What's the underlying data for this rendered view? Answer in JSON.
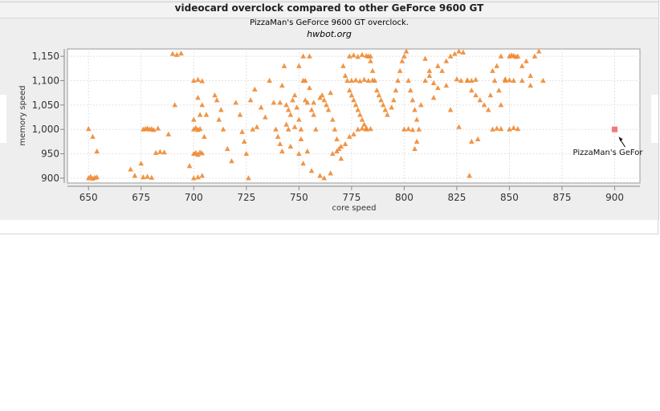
{
  "chart_data": {
    "type": "scatter",
    "title": "videocard overclock compared to other GeForce 9600 GT",
    "subtitle": "PizzaMan's GeForce 9600 GT overclock.",
    "source": "hwbot.org",
    "xlabel": "core speed",
    "ylabel": "memory speed",
    "xlim": [
      640,
      912
    ],
    "ylim": [
      890,
      1165
    ],
    "xticks": [
      650,
      675,
      700,
      725,
      750,
      775,
      800,
      825,
      850,
      875,
      900
    ],
    "yticks": [
      900,
      950,
      1000,
      1050,
      1100,
      1150
    ],
    "ytick_labels": [
      "900",
      "950",
      "1,000",
      "1,050",
      "1,100",
      "1,150"
    ],
    "grid": true,
    "series": [
      {
        "marker": "triangle",
        "color": "#ee8a33",
        "points": [
          [
            650,
            900
          ],
          [
            651,
            903
          ],
          [
            652,
            899
          ],
          [
            653,
            901
          ],
          [
            654,
            902
          ],
          [
            650,
            1001
          ],
          [
            652,
            985
          ],
          [
            654,
            955
          ],
          [
            670,
            918
          ],
          [
            672,
            905
          ],
          [
            675,
            930
          ],
          [
            676,
            1000
          ],
          [
            677,
            1001
          ],
          [
            678,
            1002
          ],
          [
            679,
            1000
          ],
          [
            680,
            1001
          ],
          [
            681,
            999
          ],
          [
            676,
            902
          ],
          [
            678,
            903
          ],
          [
            680,
            901
          ],
          [
            682,
            952
          ],
          [
            684,
            954
          ],
          [
            686,
            953
          ],
          [
            683,
            1002
          ],
          [
            688,
            990
          ],
          [
            691,
            1050
          ],
          [
            690,
            1155
          ],
          [
            692,
            1153
          ],
          [
            694,
            1156
          ],
          [
            700,
            1000
          ],
          [
            701,
            1003
          ],
          [
            702,
            999
          ],
          [
            703,
            1001
          ],
          [
            700,
            950
          ],
          [
            701,
            952
          ],
          [
            702,
            948
          ],
          [
            703,
            953
          ],
          [
            704,
            951
          ],
          [
            700,
            900
          ],
          [
            702,
            902
          ],
          [
            704,
            905
          ],
          [
            700,
            1100
          ],
          [
            702,
            1102
          ],
          [
            704,
            1099
          ],
          [
            702,
            1065
          ],
          [
            704,
            1050
          ],
          [
            703,
            1030
          ],
          [
            706,
            1030
          ],
          [
            700,
            1020
          ],
          [
            705,
            985
          ],
          [
            698,
            925
          ],
          [
            711,
            1060
          ],
          [
            710,
            1070
          ],
          [
            713,
            1040
          ],
          [
            712,
            1020
          ],
          [
            714,
            1000
          ],
          [
            716,
            960
          ],
          [
            718,
            935
          ],
          [
            720,
            1055
          ],
          [
            722,
            1030
          ],
          [
            723,
            995
          ],
          [
            724,
            975
          ],
          [
            725,
            950
          ],
          [
            726,
            900
          ],
          [
            728,
            1000
          ],
          [
            730,
            1005
          ],
          [
            727,
            1060
          ],
          [
            729,
            1082
          ],
          [
            732,
            1045
          ],
          [
            734,
            1025
          ],
          [
            736,
            1100
          ],
          [
            738,
            1055
          ],
          [
            739,
            1000
          ],
          [
            740,
            985
          ],
          [
            741,
            970
          ],
          [
            742,
            955
          ],
          [
            743,
            1130
          ],
          [
            744,
            1050
          ],
          [
            745,
            1040
          ],
          [
            746,
            1030
          ],
          [
            747,
            1060
          ],
          [
            748,
            1070
          ],
          [
            749,
            1045
          ],
          [
            750,
            1020
          ],
          [
            751,
            1000
          ],
          [
            752,
            1150
          ],
          [
            753,
            1100
          ],
          [
            754,
            1055
          ],
          [
            755,
            1085
          ],
          [
            756,
            1040
          ],
          [
            757,
            1030
          ],
          [
            750,
            950
          ],
          [
            752,
            930
          ],
          [
            754,
            955
          ],
          [
            756,
            915
          ],
          [
            750,
            1130
          ],
          [
            752,
            1100
          ],
          [
            755,
            1150
          ],
          [
            753,
            1060
          ],
          [
            757,
            1055
          ],
          [
            751,
            980
          ],
          [
            745,
            1000
          ],
          [
            744,
            1010
          ],
          [
            742,
            1090
          ],
          [
            741,
            1055
          ],
          [
            746,
            965
          ],
          [
            748,
            1005
          ],
          [
            758,
            1000
          ],
          [
            760,
            1065
          ],
          [
            761,
            1070
          ],
          [
            762,
            1060
          ],
          [
            763,
            1050
          ],
          [
            764,
            1040
          ],
          [
            765,
            1075
          ],
          [
            766,
            1020
          ],
          [
            767,
            1000
          ],
          [
            768,
            980
          ],
          [
            769,
            960
          ],
          [
            770,
            940
          ],
          [
            771,
            1130
          ],
          [
            772,
            1110
          ],
          [
            773,
            1100
          ],
          [
            774,
            1080
          ],
          [
            775,
            1070
          ],
          [
            776,
            1060
          ],
          [
            777,
            1050
          ],
          [
            778,
            1040
          ],
          [
            779,
            1030
          ],
          [
            780,
            1020
          ],
          [
            781,
            1010
          ],
          [
            782,
            1000
          ],
          [
            783,
            1150
          ],
          [
            784,
            1140
          ],
          [
            785,
            1120
          ],
          [
            786,
            1100
          ],
          [
            787,
            1080
          ],
          [
            788,
            1070
          ],
          [
            789,
            1060
          ],
          [
            790,
            1050
          ],
          [
            791,
            1040
          ],
          [
            760,
            905
          ],
          [
            762,
            900
          ],
          [
            765,
            910
          ],
          [
            766,
            950
          ],
          [
            768,
            955
          ],
          [
            770,
            965
          ],
          [
            772,
            970
          ],
          [
            774,
            985
          ],
          [
            776,
            990
          ],
          [
            778,
            1000
          ],
          [
            780,
            1002
          ],
          [
            782,
            1003
          ],
          [
            784,
            1001
          ],
          [
            775,
            1100
          ],
          [
            777,
            1101
          ],
          [
            779,
            1099
          ],
          [
            781,
            1102
          ],
          [
            783,
            1100
          ],
          [
            785,
            1101
          ],
          [
            774,
            1150
          ],
          [
            776,
            1152
          ],
          [
            778,
            1149
          ],
          [
            780,
            1153
          ],
          [
            782,
            1151
          ],
          [
            784,
            1150
          ],
          [
            792,
            1030
          ],
          [
            794,
            1045
          ],
          [
            795,
            1060
          ],
          [
            796,
            1080
          ],
          [
            797,
            1100
          ],
          [
            798,
            1120
          ],
          [
            799,
            1140
          ],
          [
            800,
            1150
          ],
          [
            801,
            1160
          ],
          [
            802,
            1100
          ],
          [
            803,
            1080
          ],
          [
            804,
            1060
          ],
          [
            805,
            1040
          ],
          [
            806,
            1020
          ],
          [
            807,
            1000
          ],
          [
            800,
            1000
          ],
          [
            802,
            1001
          ],
          [
            804,
            999
          ],
          [
            806,
            975
          ],
          [
            805,
            960
          ],
          [
            810,
            1100
          ],
          [
            812,
            1110
          ],
          [
            814,
            1095
          ],
          [
            816,
            1085
          ],
          [
            818,
            1120
          ],
          [
            820,
            1140
          ],
          [
            822,
            1150
          ],
          [
            824,
            1155
          ],
          [
            826,
            1160
          ],
          [
            828,
            1158
          ],
          [
            830,
            1100
          ],
          [
            832,
            1080
          ],
          [
            834,
            1070
          ],
          [
            836,
            1060
          ],
          [
            838,
            1050
          ],
          [
            840,
            1040
          ],
          [
            842,
            1120
          ],
          [
            844,
            1130
          ],
          [
            846,
            1150
          ],
          [
            848,
            1100
          ],
          [
            850,
            1150
          ],
          [
            851,
            1152
          ],
          [
            852,
            1151
          ],
          [
            853,
            1149
          ],
          [
            854,
            1150
          ],
          [
            830,
            1101
          ],
          [
            832,
            1100
          ],
          [
            834,
            1102
          ],
          [
            825,
            1103
          ],
          [
            827,
            1100
          ],
          [
            826,
            1005
          ],
          [
            822,
            1040
          ],
          [
            820,
            1090
          ],
          [
            816,
            1130
          ],
          [
            814,
            1065
          ],
          [
            812,
            1120
          ],
          [
            808,
            1050
          ],
          [
            810,
            1145
          ],
          [
            835,
            980
          ],
          [
            832,
            975
          ],
          [
            831,
            905
          ],
          [
            848,
            1103
          ],
          [
            850,
            1101
          ],
          [
            852,
            1100
          ],
          [
            856,
            1130
          ],
          [
            858,
            1140
          ],
          [
            860,
            1110
          ],
          [
            862,
            1150
          ],
          [
            864,
            1160
          ],
          [
            866,
            1100
          ],
          [
            860,
            1090
          ],
          [
            856,
            1100
          ],
          [
            842,
            1000
          ],
          [
            844,
            1002
          ],
          [
            846,
            1001
          ],
          [
            850,
            1000
          ],
          [
            852,
            1003
          ],
          [
            854,
            1001
          ],
          [
            846,
            1050
          ],
          [
            845,
            1080
          ],
          [
            841,
            1070
          ],
          [
            843,
            1100
          ]
        ]
      },
      {
        "name": "PizzaMan's GeForce 9600 GT",
        "marker": "square",
        "color": "#f07a7a",
        "points": [
          [
            900,
            1000
          ]
        ]
      }
    ],
    "annotations": [
      {
        "text": "PizzaMan's GeFor",
        "x": 900,
        "y": 1000
      }
    ]
  }
}
